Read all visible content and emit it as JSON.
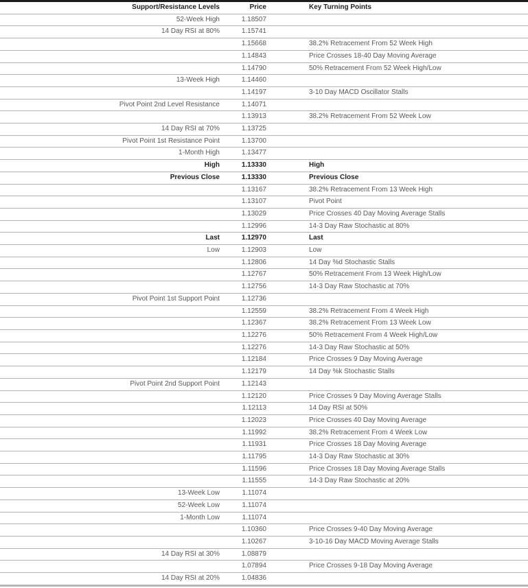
{
  "colors": {
    "top_border": "#1c1c1c",
    "bottom_border": "#b4b4b4",
    "row_separator": "#b3b3b3",
    "text_regular": "#57585a",
    "text_bold": "#212121",
    "background": "#ffffff"
  },
  "table": {
    "columns": {
      "levels": "Support/Resistance Levels",
      "price": "Price",
      "turning_points": "Key Turning Points"
    },
    "rows": [
      {
        "level": "52-Week High",
        "price": "1.18507",
        "turning_point": "",
        "bold": false
      },
      {
        "level": "14 Day RSI at 80%",
        "price": "1.15741",
        "turning_point": "",
        "bold": false
      },
      {
        "level": "",
        "price": "1.15668",
        "turning_point": "38.2% Retracement From 52 Week High",
        "bold": false
      },
      {
        "level": "",
        "price": "1.14843",
        "turning_point": "Price Crosses 18-40 Day Moving Average",
        "bold": false
      },
      {
        "level": "",
        "price": "1.14790",
        "turning_point": "50% Retracement From 52 Week High/Low",
        "bold": false
      },
      {
        "level": "13-Week High",
        "price": "1.14460",
        "turning_point": "",
        "bold": false
      },
      {
        "level": "",
        "price": "1.14197",
        "turning_point": "3-10 Day MACD Oscillator Stalls",
        "bold": false
      },
      {
        "level": "Pivot Point 2nd Level Resistance",
        "price": "1.14071",
        "turning_point": "",
        "bold": false
      },
      {
        "level": "",
        "price": "1.13913",
        "turning_point": "38.2% Retracement From 52 Week Low",
        "bold": false
      },
      {
        "level": "14 Day RSI at 70%",
        "price": "1.13725",
        "turning_point": "",
        "bold": false
      },
      {
        "level": "Pivot Point 1st Resistance Point",
        "price": "1.13700",
        "turning_point": "",
        "bold": false
      },
      {
        "level": "1-Month High",
        "price": "1.13477",
        "turning_point": "",
        "bold": false
      },
      {
        "level": "High",
        "price": "1.13330",
        "turning_point": "High",
        "bold": true
      },
      {
        "level": "Previous Close",
        "price": "1.13330",
        "turning_point": "Previous Close",
        "bold": true
      },
      {
        "level": "",
        "price": "1.13167",
        "turning_point": "38.2% Retracement From 13 Week High",
        "bold": false
      },
      {
        "level": "",
        "price": "1.13107",
        "turning_point": "Pivot Point",
        "bold": false
      },
      {
        "level": "",
        "price": "1.13029",
        "turning_point": "Price Crosses 40 Day Moving Average Stalls",
        "bold": false
      },
      {
        "level": "",
        "price": "1.12996",
        "turning_point": "14-3 Day Raw Stochastic at 80%",
        "bold": false
      },
      {
        "level": "Last",
        "price": "1.12970",
        "turning_point": "Last",
        "bold": true
      },
      {
        "level": "Low",
        "price": "1.12903",
        "turning_point": "Low",
        "bold": false
      },
      {
        "level": "",
        "price": "1.12806",
        "turning_point": "14 Day %d Stochastic Stalls",
        "bold": false
      },
      {
        "level": "",
        "price": "1.12767",
        "turning_point": "50% Retracement From 13 Week High/Low",
        "bold": false
      },
      {
        "level": "",
        "price": "1.12756",
        "turning_point": "14-3 Day Raw Stochastic at 70%",
        "bold": false
      },
      {
        "level": "Pivot Point 1st Support Point",
        "price": "1.12736",
        "turning_point": "",
        "bold": false
      },
      {
        "level": "",
        "price": "1.12559",
        "turning_point": "38.2% Retracement From 4 Week High",
        "bold": false
      },
      {
        "level": "",
        "price": "1.12367",
        "turning_point": "38.2% Retracement From 13 Week Low",
        "bold": false
      },
      {
        "level": "",
        "price": "1.12276",
        "turning_point": "50% Retracement From 4 Week High/Low",
        "bold": false
      },
      {
        "level": "",
        "price": "1.12276",
        "turning_point": "14-3 Day Raw Stochastic at 50%",
        "bold": false
      },
      {
        "level": "",
        "price": "1.12184",
        "turning_point": "Price Crosses 9 Day Moving Average",
        "bold": false
      },
      {
        "level": "",
        "price": "1.12179",
        "turning_point": "14 Day %k Stochastic Stalls",
        "bold": false
      },
      {
        "level": "Pivot Point 2nd Support Point",
        "price": "1.12143",
        "turning_point": "",
        "bold": false
      },
      {
        "level": "",
        "price": "1.12120",
        "turning_point": "Price Crosses 9 Day Moving Average Stalls",
        "bold": false
      },
      {
        "level": "",
        "price": "1.12113",
        "turning_point": "14 Day RSI at 50%",
        "bold": false
      },
      {
        "level": "",
        "price": "1.12023",
        "turning_point": "Price Crosses 40 Day Moving Average",
        "bold": false
      },
      {
        "level": "",
        "price": "1.11992",
        "turning_point": "38.2% Retracement From 4 Week Low",
        "bold": false
      },
      {
        "level": "",
        "price": "1.11931",
        "turning_point": "Price Crosses 18 Day Moving Average",
        "bold": false
      },
      {
        "level": "",
        "price": "1.11795",
        "turning_point": "14-3 Day Raw Stochastic at 30%",
        "bold": false
      },
      {
        "level": "",
        "price": "1.11596",
        "turning_point": "Price Crosses 18 Day Moving Average Stalls",
        "bold": false
      },
      {
        "level": "",
        "price": "1.11555",
        "turning_point": "14-3 Day Raw Stochastic at 20%",
        "bold": false
      },
      {
        "level": "13-Week Low",
        "price": "1.11074",
        "turning_point": "",
        "bold": false
      },
      {
        "level": "52-Week Low",
        "price": "1.11074",
        "turning_point": "",
        "bold": false
      },
      {
        "level": "1-Month Low",
        "price": "1.11074",
        "turning_point": "",
        "bold": false
      },
      {
        "level": "",
        "price": "1.10360",
        "turning_point": "Price Crosses 9-40 Day Moving Average",
        "bold": false
      },
      {
        "level": "",
        "price": "1.10267",
        "turning_point": "3-10-16 Day MACD Moving Average Stalls",
        "bold": false
      },
      {
        "level": "14 Day RSI at 30%",
        "price": "1.08879",
        "turning_point": "",
        "bold": false
      },
      {
        "level": "",
        "price": "1.07894",
        "turning_point": "Price Crosses 9-18 Day Moving Average",
        "bold": false
      },
      {
        "level": "14 Day RSI at 20%",
        "price": "1.04836",
        "turning_point": "",
        "bold": false
      }
    ]
  }
}
